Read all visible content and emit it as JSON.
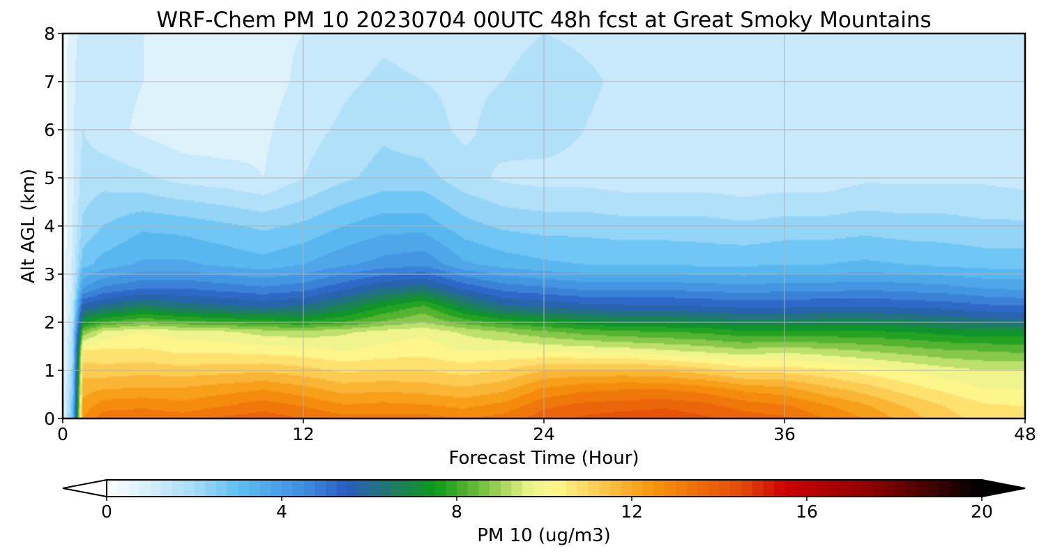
{
  "chart_data": {
    "type": "heatmap",
    "title": "WRF-Chem PM 10  20230704 00UTC 48h fcst at Great Smoky Mountains",
    "xlabel": "Forecast Time (Hour)",
    "ylabel": "Alt AGL (km)",
    "xlim": [
      0,
      48
    ],
    "ylim": [
      0,
      8
    ],
    "x_ticks": [
      0,
      12,
      24,
      36,
      48
    ],
    "y_ticks": [
      0,
      1,
      2,
      3,
      4,
      5,
      6,
      7,
      8
    ],
    "grid": true,
    "colorbar": {
      "label": "PM 10  (ug/m3)",
      "range": [
        0,
        20
      ],
      "ticks": [
        0,
        4,
        8,
        12,
        16,
        20
      ],
      "extend": "both",
      "stops": [
        {
          "v": 0,
          "color": "#ffffff"
        },
        {
          "v": 2,
          "color": "#a6dcf8"
        },
        {
          "v": 3,
          "color": "#5ebff3"
        },
        {
          "v": 4.5,
          "color": "#3f8ee0"
        },
        {
          "v": 5.5,
          "color": "#2a5cc0"
        },
        {
          "v": 6.5,
          "color": "#1f7a6a"
        },
        {
          "v": 7.5,
          "color": "#0b9a18"
        },
        {
          "v": 8.5,
          "color": "#6cbc3a"
        },
        {
          "v": 9.7,
          "color": "#eef58c"
        },
        {
          "v": 10.3,
          "color": "#fff58a"
        },
        {
          "v": 11.5,
          "color": "#fbc042"
        },
        {
          "v": 12.5,
          "color": "#f7940c"
        },
        {
          "v": 14.5,
          "color": "#e34a08"
        },
        {
          "v": 15.5,
          "color": "#cc0000"
        },
        {
          "v": 17.5,
          "color": "#8b0000"
        },
        {
          "v": 20,
          "color": "#000000"
        }
      ]
    },
    "times": [
      0,
      0.5,
      1,
      2,
      4,
      6,
      8,
      10,
      12,
      14,
      16,
      18,
      20,
      22,
      24,
      26,
      28,
      30,
      32,
      34,
      36,
      38,
      40,
      42,
      44,
      46,
      48
    ],
    "altitudes": [
      0,
      0.25,
      0.6,
      1.0,
      1.4,
      1.8,
      2.0,
      2.3,
      2.7,
      3.2,
      4.0,
      5.0,
      6.0,
      7.0,
      8.0
    ],
    "values": [
      [
        0.5,
        3.0,
        12.5,
        13.3,
        13.4,
        13.3,
        13.6,
        13.8,
        13.5,
        13.2,
        13.2,
        13.2,
        13.0,
        13.2,
        13.8,
        14.1,
        14.3,
        14.4,
        14.1,
        13.8,
        13.6,
        13.0,
        12.5,
        11.8,
        11.2,
        10.8,
        10.7
      ],
      [
        0.4,
        2.8,
        12.2,
        12.8,
        12.9,
        12.7,
        13.0,
        13.3,
        13.0,
        12.6,
        12.7,
        12.6,
        12.4,
        12.7,
        13.4,
        13.7,
        13.8,
        13.9,
        13.7,
        13.3,
        13.1,
        12.6,
        12.1,
        11.5,
        11.0,
        10.6,
        10.5
      ],
      [
        0.3,
        2.5,
        11.8,
        12.0,
        12.1,
        12.1,
        12.3,
        12.5,
        12.2,
        11.8,
        11.9,
        11.8,
        11.6,
        11.9,
        12.6,
        12.9,
        13.0,
        13.0,
        12.8,
        12.4,
        12.2,
        11.7,
        11.3,
        10.8,
        10.4,
        10.0,
        10.0
      ],
      [
        0.2,
        2.2,
        11.3,
        11.2,
        11.3,
        11.2,
        11.3,
        11.4,
        11.2,
        10.9,
        11.0,
        11.0,
        10.8,
        11.0,
        11.5,
        11.6,
        11.6,
        11.5,
        11.2,
        10.8,
        10.8,
        10.6,
        10.3,
        10.0,
        9.7,
        9.5,
        9.5
      ],
      [
        0.2,
        2.0,
        10.6,
        10.6,
        10.6,
        10.4,
        10.4,
        10.3,
        10.2,
        10.0,
        10.2,
        10.3,
        10.0,
        10.1,
        10.0,
        9.9,
        9.8,
        9.6,
        9.4,
        9.2,
        9.4,
        9.2,
        9.0,
        8.8,
        8.6,
        8.5,
        8.4
      ],
      [
        0.2,
        1.8,
        8.6,
        9.6,
        10.0,
        9.7,
        9.6,
        9.3,
        9.2,
        9.4,
        9.7,
        9.9,
        9.4,
        9.0,
        8.6,
        8.3,
        8.1,
        8.0,
        7.9,
        7.6,
        7.6,
        7.6,
        7.6,
        7.5,
        7.3,
        7.2,
        7.2
      ],
      [
        0.2,
        1.6,
        7.2,
        8.0,
        8.5,
        8.2,
        8.0,
        7.8,
        7.6,
        8.0,
        8.6,
        9.0,
        8.3,
        7.8,
        7.5,
        7.2,
        7.0,
        7.0,
        6.9,
        6.7,
        6.7,
        6.8,
        6.8,
        6.7,
        6.5,
        6.3,
        6.2
      ],
      [
        0.2,
        1.4,
        5.8,
        6.2,
        6.8,
        6.4,
        6.2,
        6.0,
        6.2,
        6.8,
        7.6,
        8.2,
        7.0,
        6.2,
        6.0,
        5.8,
        5.7,
        5.7,
        5.6,
        5.5,
        5.5,
        5.6,
        5.6,
        5.5,
        5.4,
        5.2,
        5.1
      ],
      [
        0.2,
        1.2,
        4.0,
        4.6,
        5.0,
        5.0,
        4.8,
        4.6,
        4.8,
        5.4,
        6.0,
        6.3,
        5.4,
        4.8,
        4.6,
        4.4,
        4.4,
        4.4,
        4.3,
        4.2,
        4.3,
        4.3,
        4.4,
        4.3,
        4.2,
        4.0,
        3.9
      ],
      [
        0.2,
        1.1,
        2.8,
        3.2,
        3.6,
        3.6,
        3.4,
        3.2,
        3.5,
        3.9,
        4.2,
        4.4,
        3.6,
        3.3,
        3.1,
        3.0,
        3.0,
        3.0,
        2.9,
        2.9,
        3.0,
        3.0,
        3.1,
        3.0,
        2.9,
        2.8,
        2.8
      ],
      [
        0.2,
        1.0,
        2.1,
        2.5,
        2.9,
        2.8,
        2.6,
        2.4,
        2.6,
        3.0,
        3.3,
        3.3,
        2.7,
        2.4,
        2.3,
        2.3,
        2.2,
        2.2,
        2.2,
        2.1,
        2.2,
        2.2,
        2.3,
        2.2,
        2.2,
        2.1,
        2.1
      ],
      [
        0.2,
        0.9,
        1.7,
        1.8,
        1.6,
        1.3,
        1.2,
        1.0,
        1.5,
        1.9,
        2.2,
        2.2,
        1.7,
        1.4,
        1.3,
        1.3,
        1.2,
        1.2,
        1.2,
        1.1,
        1.2,
        1.2,
        1.4,
        1.4,
        1.4,
        1.4,
        1.3
      ],
      [
        0.2,
        0.9,
        1.5,
        1.2,
        0.9,
        0.7,
        0.7,
        0.9,
        1.3,
        1.6,
        1.9,
        1.7,
        1.4,
        1.7,
        1.8,
        1.5,
        1.3,
        1.2,
        1.3,
        1.2,
        1.2,
        1.3,
        1.4,
        1.3,
        1.4,
        1.3,
        1.3
      ],
      [
        0.2,
        0.9,
        1.4,
        1.2,
        1.0,
        0.8,
        0.7,
        0.8,
        1.1,
        1.4,
        1.6,
        1.5,
        1.4,
        1.5,
        1.8,
        1.6,
        1.4,
        1.3,
        1.3,
        1.2,
        1.2,
        1.1,
        1.2,
        1.1,
        1.1,
        1.1,
        1.1
      ],
      [
        0.2,
        0.8,
        1.2,
        1.1,
        1.0,
        0.9,
        0.9,
        0.9,
        1.0,
        1.2,
        1.4,
        1.3,
        1.3,
        1.3,
        1.5,
        1.4,
        1.3,
        1.2,
        1.2,
        1.1,
        1.1,
        1.0,
        1.0,
        1.0,
        1.0,
        1.0,
        1.0
      ]
    ]
  }
}
